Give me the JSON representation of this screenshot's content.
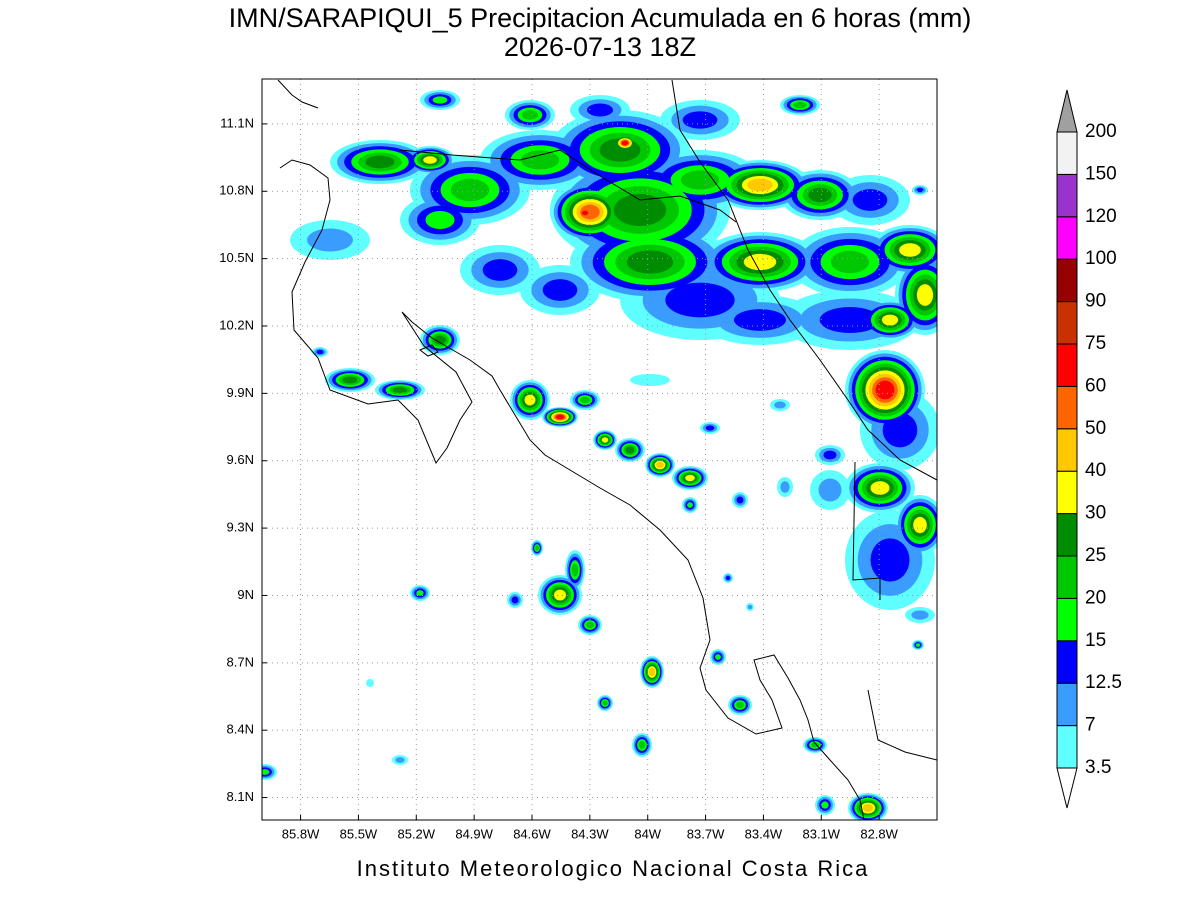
{
  "title": "IMN/SARAPIQUI_5 Precipitacion Acumulada en 6 horas (mm)",
  "subtitle": "2026-07-13 18Z",
  "footer": "Instituto Meteorologico Nacional Costa Rica",
  "map": {
    "xlim": [
      -86.0,
      -82.5
    ],
    "ylim": [
      8.0,
      11.3
    ],
    "grid": true,
    "xticks": [
      {
        "value": -85.8,
        "label": "85.8W"
      },
      {
        "value": -85.5,
        "label": "85.5W"
      },
      {
        "value": -85.2,
        "label": "85.2W"
      },
      {
        "value": -84.9,
        "label": "84.9W"
      },
      {
        "value": -84.6,
        "label": "84.6W"
      },
      {
        "value": -84.3,
        "label": "84.3W"
      },
      {
        "value": -84.0,
        "label": "84W"
      },
      {
        "value": -83.7,
        "label": "83.7W"
      },
      {
        "value": -83.4,
        "label": "83.4W"
      },
      {
        "value": -83.1,
        "label": "83.1W"
      },
      {
        "value": -82.8,
        "label": "82.8W"
      }
    ],
    "yticks": [
      {
        "value": 8.1,
        "label": "8.1N"
      },
      {
        "value": 8.4,
        "label": "8.4N"
      },
      {
        "value": 8.7,
        "label": "8.7N"
      },
      {
        "value": 9.0,
        "label": "9N"
      },
      {
        "value": 9.3,
        "label": "9.3N"
      },
      {
        "value": 9.6,
        "label": "9.6N"
      },
      {
        "value": 9.9,
        "label": "9.9N"
      },
      {
        "value": 10.2,
        "label": "10.2N"
      },
      {
        "value": 10.5,
        "label": "10.5N"
      },
      {
        "value": 10.8,
        "label": "10.8N"
      },
      {
        "value": 11.1,
        "label": "11.1N"
      }
    ]
  },
  "colorbar": {
    "levels": [
      3.5,
      7,
      12.5,
      15,
      20,
      25,
      30,
      40,
      50,
      60,
      75,
      90,
      100,
      120,
      150,
      200
    ],
    "colors": [
      "#ffffff",
      "#5fffff",
      "#3a9cff",
      "#0000ff",
      "#00ff00",
      "#00c800",
      "#008c00",
      "#ffff00",
      "#ffc800",
      "#ff6400",
      "#ff0000",
      "#c83200",
      "#960000",
      "#ff00ff",
      "#9933cc",
      "#f2f2f2",
      "#a0a0a0"
    ]
  }
}
